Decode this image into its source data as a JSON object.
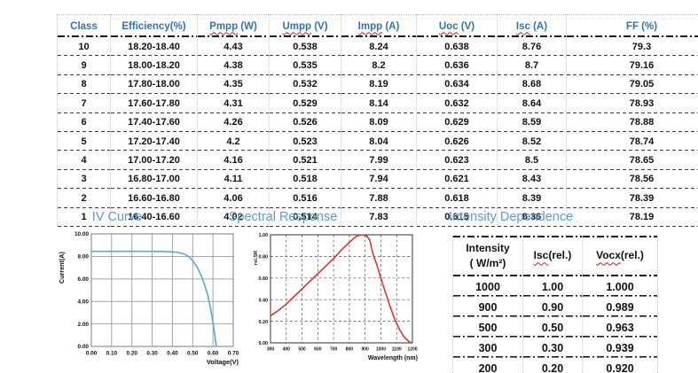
{
  "colors": {
    "table_header_blue": "#2E74B5",
    "section_title_blue": "#5B9BD5",
    "iv_curve_blue": "#55A8D8",
    "sr_curve_red": "#E0342C",
    "squiggle_red": "#cc1f1f"
  },
  "class_table": {
    "columns": [
      {
        "main": "Class",
        "suffix": "",
        "squiggle": false
      },
      {
        "main": "Efficiency(%)",
        "suffix": "",
        "squiggle": false
      },
      {
        "main": "Pmpp",
        "suffix": " (W)",
        "squiggle": true
      },
      {
        "main": "Umpp",
        "suffix": " (V)",
        "squiggle": true
      },
      {
        "main": "Impp",
        "suffix": " (A)",
        "squiggle": true
      },
      {
        "main": "Uoc",
        "suffix": " (V)",
        "squiggle": true
      },
      {
        "main": "Isc",
        "suffix": " (A)",
        "squiggle": true
      },
      {
        "main": "FF (%)",
        "suffix": "",
        "squiggle": false
      }
    ],
    "rows": [
      [
        "10",
        "18.20-18.40",
        "4.43",
        "0.538",
        "8.24",
        "0.638",
        "8.76",
        "79.3"
      ],
      [
        "9",
        "18.00-18.20",
        "4.38",
        "0.535",
        "8.2",
        "0.636",
        "8.7",
        "79.16"
      ],
      [
        "8",
        "17.80-18.00",
        "4.35",
        "0.532",
        "8.19",
        "0.634",
        "8.68",
        "79.05"
      ],
      [
        "7",
        "17.60-17.80",
        "4.31",
        "0.529",
        "8.14",
        "0.632",
        "8.64",
        "78.93"
      ],
      [
        "6",
        "17.40-17.60",
        "4.26",
        "0.526",
        "8.09",
        "0.629",
        "8.59",
        "78.88"
      ],
      [
        "5",
        "17.20-17.40",
        "4.2",
        "0.523",
        "8.04",
        "0.626",
        "8.52",
        "78.74"
      ],
      [
        "4",
        "17.00-17.20",
        "4.16",
        "0.521",
        "7.99",
        "0.623",
        "8.5",
        "78.65"
      ],
      [
        "3",
        "16.80-17.00",
        "4.11",
        "0.518",
        "7.94",
        "0.621",
        "8.43",
        "78.56"
      ],
      [
        "2",
        "16.60-16.80",
        "4.06",
        "0.516",
        "7.88",
        "0.618",
        "8.39",
        "78.39"
      ],
      [
        "1",
        "16.40-16.60",
        "4.02",
        "0.514",
        "7.83",
        "0.615",
        "8.36",
        "78.19"
      ]
    ]
  },
  "sections": {
    "iv_title": "IV Curve",
    "sr_title": "Spectral Response",
    "intensity_title": "Intensity Dependence"
  },
  "chart_data": [
    {
      "id": "iv",
      "type": "line",
      "title": "IV Curve",
      "xlabel": "Voltage(V)",
      "ylabel": "Current(A)",
      "xlim": [
        0,
        0.7
      ],
      "ylim": [
        0,
        10
      ],
      "xticks": [
        "0.00",
        "0.10",
        "0.20",
        "0.30",
        "0.40",
        "0.50",
        "0.60",
        "0.70"
      ],
      "yticks": [
        "0.00",
        "2.00",
        "4.00",
        "6.00",
        "8.00",
        "10.00"
      ],
      "grid": "solid",
      "legend": "none",
      "color": "#55A8D8",
      "points": [
        [
          0,
          8.45
        ],
        [
          0.1,
          8.45
        ],
        [
          0.2,
          8.45
        ],
        [
          0.3,
          8.45
        ],
        [
          0.35,
          8.44
        ],
        [
          0.4,
          8.41
        ],
        [
          0.43,
          8.35
        ],
        [
          0.46,
          8.2
        ],
        [
          0.48,
          8.0
        ],
        [
          0.5,
          7.6
        ],
        [
          0.52,
          7.1
        ],
        [
          0.54,
          6.4
        ],
        [
          0.56,
          5.4
        ],
        [
          0.575,
          4.5
        ],
        [
          0.59,
          3.2
        ],
        [
          0.6,
          2.1
        ],
        [
          0.608,
          1.1
        ],
        [
          0.615,
          0.2
        ],
        [
          0.617,
          0
        ]
      ]
    },
    {
      "id": "sr",
      "type": "line",
      "title": "Spectral Response",
      "xlabel": "Wavelength (nm)",
      "ylabel": "rel.SR",
      "xlim": [
        300,
        1200
      ],
      "ylim": [
        0,
        1
      ],
      "xticks": [
        "300",
        "400",
        "500",
        "600",
        "700",
        "800",
        "900",
        "1000",
        "1100",
        "1200"
      ],
      "yticks": [
        "0.00",
        "0.20",
        "0.40",
        "0.60",
        "0.80",
        "1.00"
      ],
      "grid": "dashed",
      "legend": "none",
      "color": "#E0342C",
      "points": [
        [
          300,
          0.25
        ],
        [
          350,
          0.3
        ],
        [
          400,
          0.36
        ],
        [
          450,
          0.43
        ],
        [
          500,
          0.5
        ],
        [
          550,
          0.57
        ],
        [
          600,
          0.64
        ],
        [
          650,
          0.71
        ],
        [
          700,
          0.78
        ],
        [
          750,
          0.86
        ],
        [
          800,
          0.93
        ],
        [
          830,
          0.97
        ],
        [
          850,
          0.99
        ],
        [
          880,
          1.0
        ],
        [
          910,
          0.99
        ],
        [
          930,
          0.95
        ],
        [
          950,
          0.82
        ],
        [
          975,
          0.72
        ],
        [
          1000,
          0.6
        ],
        [
          1030,
          0.46
        ],
        [
          1060,
          0.33
        ],
        [
          1090,
          0.21
        ],
        [
          1120,
          0.12
        ],
        [
          1150,
          0.05
        ],
        [
          1180,
          0.01
        ],
        [
          1192,
          0
        ]
      ]
    }
  ],
  "intensity_table": {
    "columns": [
      {
        "lines": [
          "Intensity",
          "( W/m²)"
        ],
        "squiggle": false
      },
      {
        "main": "Isc",
        "suffix": "(rel.)",
        "squiggle": true
      },
      {
        "main": "Vocx",
        "suffix": "(rel.)",
        "squiggle": true
      }
    ],
    "rows": [
      [
        "1000",
        "1.00",
        "1.000"
      ],
      [
        "900",
        "0.90",
        "0.989"
      ],
      [
        "500",
        "0.50",
        "0.963"
      ],
      [
        "300",
        "0.30",
        "0.939"
      ],
      [
        "200",
        "0.20",
        "0.920"
      ]
    ]
  }
}
